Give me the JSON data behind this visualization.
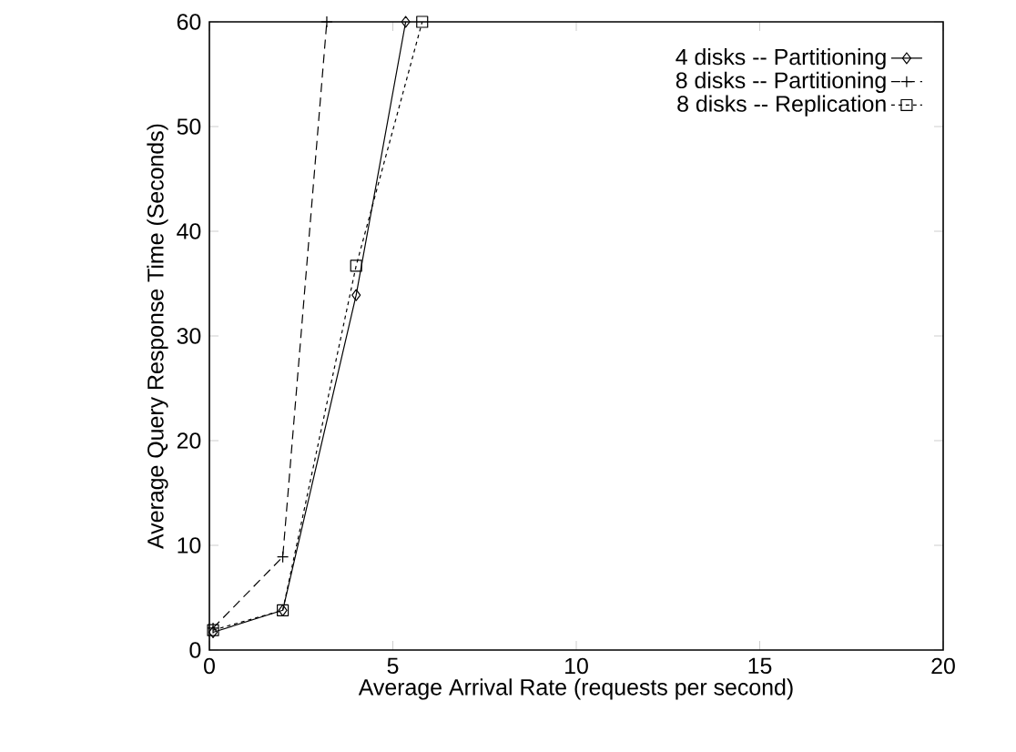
{
  "chart_data": {
    "type": "line",
    "xlabel": "Average Arrival Rate (requests per second)",
    "ylabel": "Average Query Response Time (Seconds)",
    "xlim": [
      0,
      20
    ],
    "xticks": [
      0,
      5,
      10,
      15,
      20
    ],
    "ylim": [
      0,
      60
    ],
    "yticks": [
      0,
      10,
      20,
      30,
      40,
      50,
      60
    ],
    "grid": false,
    "legend": "top right",
    "series": [
      {
        "name": "4 disks -- Partitioning",
        "color": "#000000",
        "marker": "diamond",
        "line_style": "solid",
        "x": [
          0.1,
          2,
          4,
          5.35
        ],
        "values": [
          1.7,
          3.8,
          33.9,
          60
        ]
      },
      {
        "name": "8 disks -- Partitioning",
        "color": "#000000",
        "marker": "cross",
        "line_style": "dashed",
        "x": [
          0.1,
          2,
          3.2
        ],
        "values": [
          2.1,
          8.9,
          60
        ]
      },
      {
        "name": "8 disks -- Replication",
        "color": "#000000",
        "marker": "square",
        "line_style": "dotted",
        "x": [
          0.1,
          2,
          4,
          5.8
        ],
        "values": [
          1.9,
          3.8,
          36.7,
          60
        ]
      }
    ]
  }
}
